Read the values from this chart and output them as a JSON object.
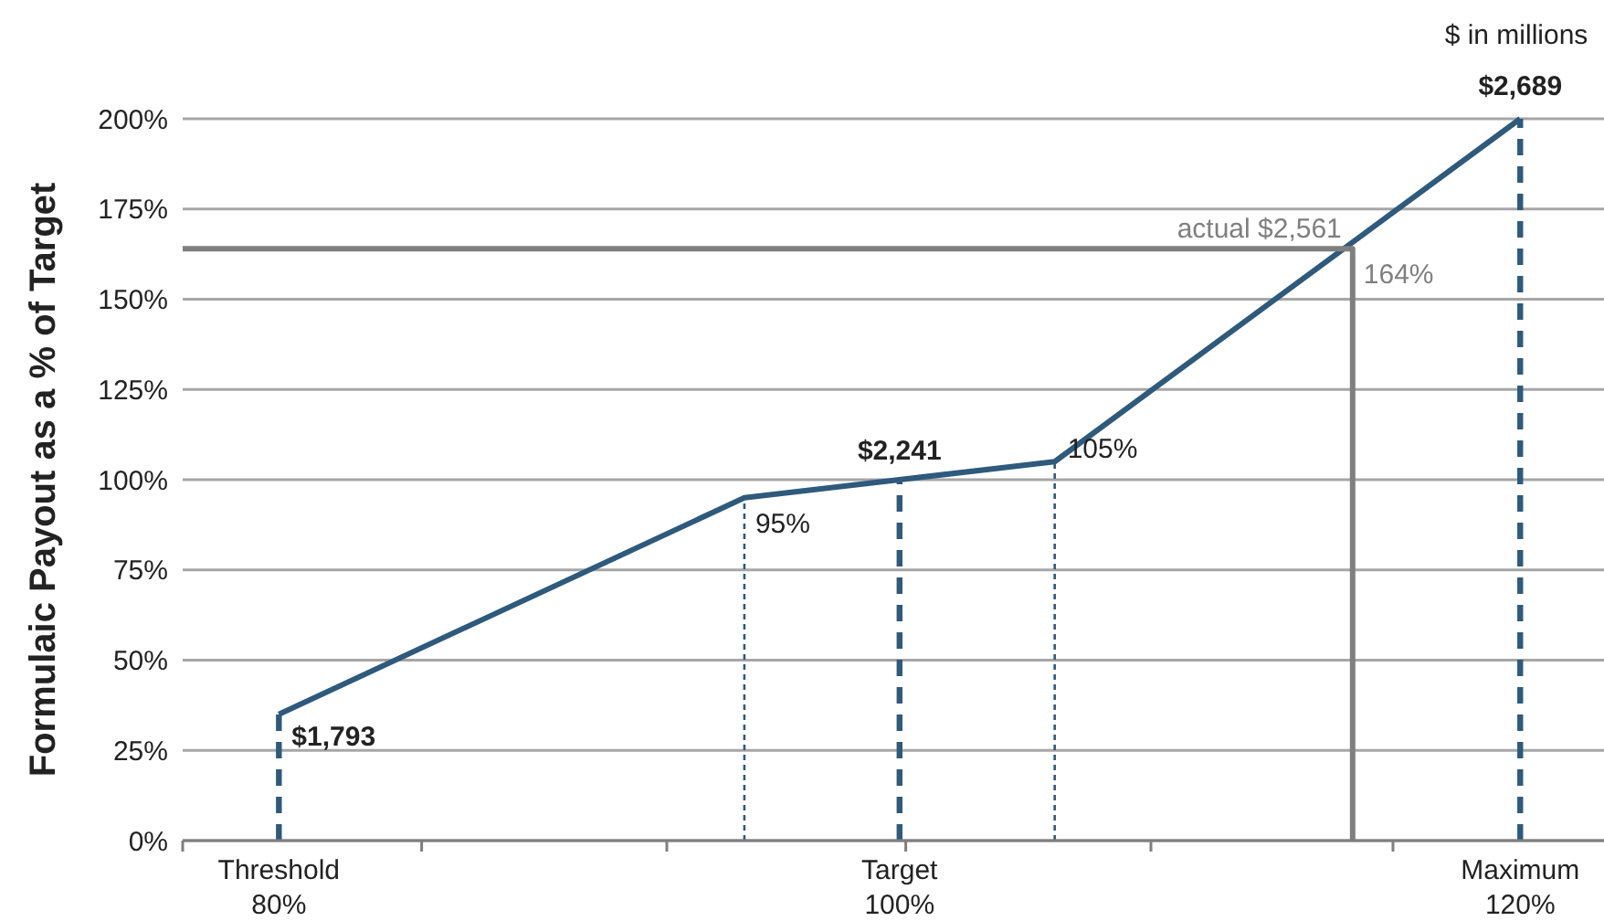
{
  "chart_data": {
    "type": "line",
    "ylabel": "Formulaic Payout as a % of Target",
    "xlim": [
      76.9,
      122.7
    ],
    "xticks": [
      {
        "value": 80,
        "label": "80%"
      },
      {
        "value": 100,
        "label": "100%"
      },
      {
        "value": 120,
        "label": "120%"
      },
      {
        "value": 76.9,
        "label": null
      },
      {
        "value": 84.6,
        "label": null
      },
      {
        "value": 92.5,
        "label": null
      },
      {
        "value": 100.2,
        "label": null
      },
      {
        "value": 108.1,
        "label": null
      },
      {
        "value": 115.9,
        "label": null
      }
    ],
    "ylim": [
      0,
      200
    ],
    "yticks": [
      {
        "value": 0,
        "label": "0%"
      },
      {
        "value": 25,
        "label": "25%"
      },
      {
        "value": 50,
        "label": "50%"
      },
      {
        "value": 75,
        "label": "75%"
      },
      {
        "value": 100,
        "label": "100%"
      },
      {
        "value": 125,
        "label": "125%"
      },
      {
        "value": 150,
        "label": "150%"
      },
      {
        "value": 175,
        "label": "175%"
      },
      {
        "value": 200,
        "label": "200%"
      }
    ],
    "grid": "y",
    "marker": "none",
    "line_style": "solid",
    "series": [
      {
        "color": "#2e5a7c",
        "x": [
          80,
          95,
          100,
          105,
          120
        ],
        "values": [
          35,
          95,
          100,
          105,
          200
        ]
      },
      {
        "color": "#7f7f7f",
        "x": [
          76.9,
          114.6,
          114.6
        ],
        "values": [
          164,
          164,
          0
        ]
      }
    ],
    "ref_lines": [
      {
        "axis": "x",
        "value": 80,
        "color": "#2e5a7c",
        "line_style": "dashed"
      },
      {
        "axis": "x",
        "value": 95,
        "color": "#2e5a7c",
        "line_style": "dotted"
      },
      {
        "axis": "x",
        "value": 100,
        "color": "#2e5a7c",
        "line_style": "dashed"
      },
      {
        "axis": "x",
        "value": 105,
        "color": "#2e5a7c",
        "line_style": "dotted"
      },
      {
        "axis": "x",
        "value": 120,
        "color": "#2e5a7c",
        "line_style": "dashed"
      }
    ],
    "annotations": [
      {
        "text": "$1,793",
        "x": 80,
        "y": 35
      },
      {
        "text": "95%",
        "x": 95,
        "y": 95
      },
      {
        "text": "$2,241",
        "x": 100,
        "y": 100
      },
      {
        "text": "105%",
        "x": 105,
        "y": 105
      },
      {
        "text": "$2,689",
        "x": 120,
        "y": 200
      },
      {
        "text": "actual $2,561",
        "x": 114.6,
        "y": 164
      },
      {
        "text": "164%",
        "x": 114.6,
        "y": 164
      },
      "$ in millions",
      "Threshold",
      "Target",
      "Maximum"
    ]
  }
}
